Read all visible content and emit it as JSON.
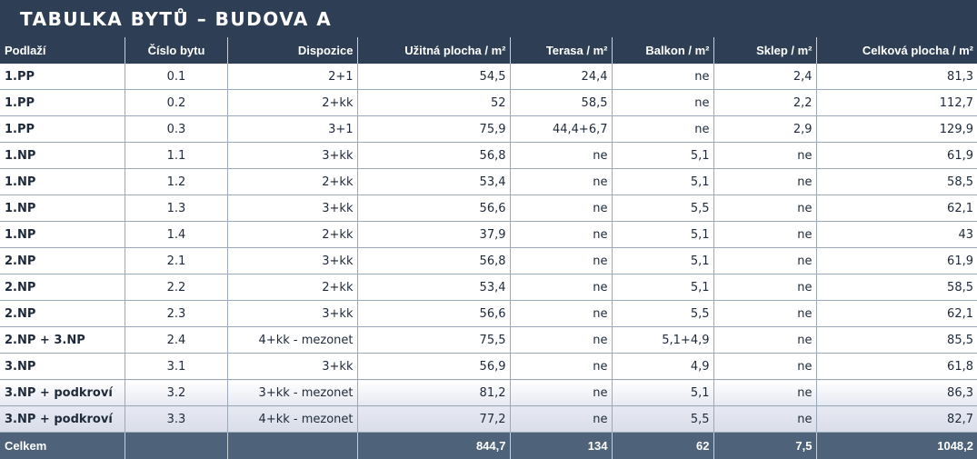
{
  "title": "TABULKA BYTŮ – BUDOVA A",
  "headers": {
    "podlazi": "Podlaží",
    "cislo": "Číslo bytu",
    "dispozice": "Dispozice",
    "uzitna": "Užitná plocha / m²",
    "terasa": "Terasa / m²",
    "balkon": "Balkon / m²",
    "sklep": "Sklep / m²",
    "celkova": "Celková plocha / m²"
  },
  "rows": [
    {
      "podlazi": "1.PP",
      "cislo": "0.1",
      "dispozice": "2+1",
      "uzitna": "54,5",
      "terasa": "24,4",
      "balkon": "ne",
      "sklep": "2,4",
      "celkova": "81,3"
    },
    {
      "podlazi": "1.PP",
      "cislo": "0.2",
      "dispozice": "2+kk",
      "uzitna": "52",
      "terasa": "58,5",
      "balkon": "ne",
      "sklep": "2,2",
      "celkova": "112,7"
    },
    {
      "podlazi": "1.PP",
      "cislo": "0.3",
      "dispozice": "3+1",
      "uzitna": "75,9",
      "terasa": "44,4+6,7",
      "balkon": "ne",
      "sklep": "2,9",
      "celkova": "129,9"
    },
    {
      "podlazi": "1.NP",
      "cislo": "1.1",
      "dispozice": "3+kk",
      "uzitna": "56,8",
      "terasa": "ne",
      "balkon": "5,1",
      "sklep": "ne",
      "celkova": "61,9"
    },
    {
      "podlazi": "1.NP",
      "cislo": "1.2",
      "dispozice": "2+kk",
      "uzitna": "53,4",
      "terasa": "ne",
      "balkon": "5,1",
      "sklep": "ne",
      "celkova": "58,5"
    },
    {
      "podlazi": "1.NP",
      "cislo": "1.3",
      "dispozice": "3+kk",
      "uzitna": "56,6",
      "terasa": "ne",
      "balkon": "5,5",
      "sklep": "ne",
      "celkova": "62,1"
    },
    {
      "podlazi": "1.NP",
      "cislo": "1.4",
      "dispozice": "2+kk",
      "uzitna": "37,9",
      "terasa": "ne",
      "balkon": "5,1",
      "sklep": "ne",
      "celkova": "43"
    },
    {
      "podlazi": "2.NP",
      "cislo": "2.1",
      "dispozice": "3+kk",
      "uzitna": "56,8",
      "terasa": "ne",
      "balkon": "5,1",
      "sklep": "ne",
      "celkova": "61,9"
    },
    {
      "podlazi": "2.NP",
      "cislo": "2.2",
      "dispozice": "2+kk",
      "uzitna": "53,4",
      "terasa": "ne",
      "balkon": "5,1",
      "sklep": "ne",
      "celkova": "58,5"
    },
    {
      "podlazi": "2.NP",
      "cislo": "2.3",
      "dispozice": "3+kk",
      "uzitna": "56,6",
      "terasa": "ne",
      "balkon": "5,5",
      "sklep": "ne",
      "celkova": "62,1"
    },
    {
      "podlazi": "2.NP + 3.NP",
      "cislo": "2.4",
      "dispozice": "4+kk - mezonet",
      "uzitna": "75,5",
      "terasa": "ne",
      "balkon": "5,1+4,9",
      "sklep": "ne",
      "celkova": "85,5"
    },
    {
      "podlazi": "3.NP",
      "cislo": "3.1",
      "dispozice": "3+kk",
      "uzitna": "56,9",
      "terasa": "ne",
      "balkon": "4,9",
      "sklep": "ne",
      "celkova": "61,8"
    },
    {
      "podlazi": "3.NP + podkroví",
      "cislo": "3.2",
      "dispozice": "3+kk - mezonet",
      "uzitna": "81,2",
      "terasa": "ne",
      "balkon": "5,1",
      "sklep": "ne",
      "celkova": "86,3"
    },
    {
      "podlazi": "3.NP + podkroví",
      "cislo": "3.3",
      "dispozice": "4+kk - mezonet",
      "uzitna": "77,2",
      "terasa": "ne",
      "balkon": "5,5",
      "sklep": "ne",
      "celkova": "82,7"
    }
  ],
  "totals": {
    "label": "Celkem",
    "uzitna": "844,7",
    "terasa": "134",
    "balkon": "62",
    "sklep": "7,5",
    "celkova": "1048,2"
  },
  "colors": {
    "header_bg": "#2e3f55",
    "footer_bg": "#4e6279",
    "text": "#1e2a3a"
  }
}
